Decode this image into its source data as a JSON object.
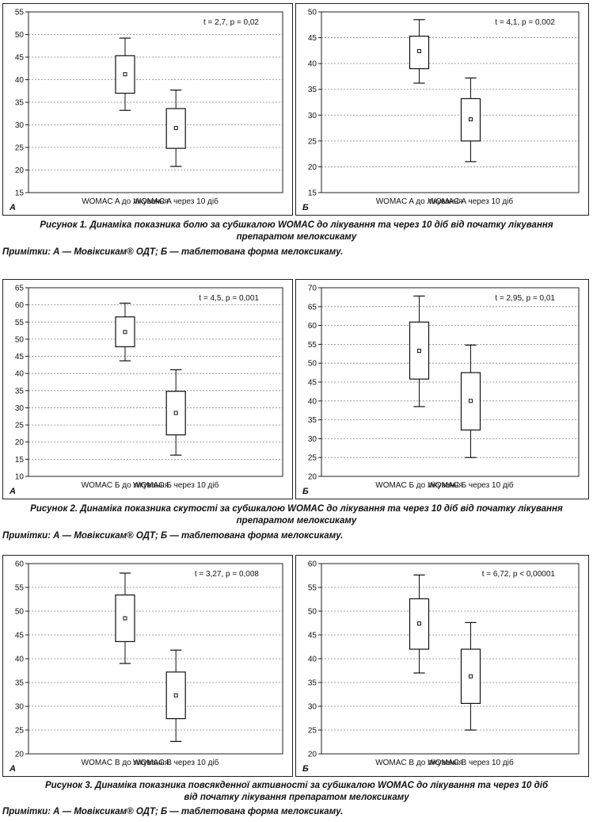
{
  "figures": [
    {
      "caption_line1": "Рисунок 1. Динаміка показника болю за субшкалою WOMAC до лікування та через 10 діб від початку лікування",
      "caption_line2": "препаратом мелоксикаму",
      "note": "Примітки: А — Мовіксикам® ОДТ; Б — таблетована форма мелоксикаму."
    },
    {
      "caption_line1": "Рисунок 2. Динаміка показника скутості за субшкалою WOMAC до лікування та через 10 діб від початку лікування",
      "caption_line2": "препаратом мелоксикаму",
      "note": "Примітки: А — Мовіксикам® ОДТ; Б — таблетована форма мелоксикаму."
    },
    {
      "caption_line1": "Рисунок 3. Динаміка показника повсякденної активності за субшкалою WOMAC до лікування та через 10 діб",
      "caption_line2": "від початку лікування препаратом мелоксикаму",
      "note": "Примітки: А — Мовіксикам® ОДТ; Б — таблетована форма мелоксикаму."
    }
  ],
  "chart_data": [
    {
      "type": "boxplot",
      "panel": "А",
      "stat": "t = 2,7, p = 0,02",
      "ylim": [
        15,
        55
      ],
      "yticks": [
        15,
        20,
        25,
        30,
        35,
        40,
        45,
        50,
        55
      ],
      "categories": [
        "WOMAC A до лікування",
        "WOMAC A через 10 діб"
      ],
      "boxes": [
        {
          "min": 33.2,
          "q1": 37.0,
          "mean": 41.2,
          "q3": 45.3,
          "max": 49.2
        },
        {
          "min": 20.8,
          "q1": 24.8,
          "mean": 29.3,
          "q3": 33.6,
          "max": 37.7
        }
      ]
    },
    {
      "type": "boxplot",
      "panel": "Б",
      "stat": "t = 4,1, p = 0,002",
      "ylim": [
        15,
        50
      ],
      "yticks": [
        15,
        20,
        25,
        30,
        35,
        40,
        45,
        50
      ],
      "categories": [
        "WOMAC A до лікування",
        "WOMAC A через 10 діб"
      ],
      "boxes": [
        {
          "min": 36.2,
          "q1": 39.0,
          "mean": 42.4,
          "q3": 45.3,
          "max": 48.5
        },
        {
          "min": 21.0,
          "q1": 25.0,
          "mean": 29.2,
          "q3": 33.2,
          "max": 37.2
        }
      ]
    },
    {
      "type": "boxplot",
      "panel": "А",
      "stat": "t = 4,5, p = 0,001",
      "ylim": [
        10,
        65
      ],
      "yticks": [
        10,
        15,
        20,
        25,
        30,
        35,
        40,
        45,
        50,
        55,
        60,
        65
      ],
      "categories": [
        "WOMAC Б до лікування",
        "WOMAC Б через 10 діб"
      ],
      "boxes": [
        {
          "min": 43.7,
          "q1": 47.8,
          "mean": 52.1,
          "q3": 56.5,
          "max": 60.5
        },
        {
          "min": 16.2,
          "q1": 22.1,
          "mean": 28.5,
          "q3": 34.8,
          "max": 41.1
        }
      ]
    },
    {
      "type": "boxplot",
      "panel": "Б",
      "stat": "t = 2,95, p = 0,01",
      "ylim": [
        20,
        70
      ],
      "yticks": [
        20,
        25,
        30,
        35,
        40,
        45,
        50,
        55,
        60,
        65,
        70
      ],
      "categories": [
        "WOMAC Б до лікування",
        "WOMAC Б через 10 діб"
      ],
      "boxes": [
        {
          "min": 38.5,
          "q1": 45.8,
          "mean": 53.3,
          "q3": 60.9,
          "max": 67.8
        },
        {
          "min": 25.0,
          "q1": 32.3,
          "mean": 40.0,
          "q3": 47.5,
          "max": 54.8
        }
      ]
    },
    {
      "type": "boxplot",
      "panel": "А",
      "stat": "t = 3,27, p = 0,008",
      "ylim": [
        20,
        60
      ],
      "yticks": [
        20,
        25,
        30,
        35,
        40,
        45,
        50,
        55,
        60
      ],
      "categories": [
        "WOMAC B до лікування",
        "WOMAC B через 10 діб"
      ],
      "boxes": [
        {
          "min": 39.0,
          "q1": 43.6,
          "mean": 48.5,
          "q3": 53.4,
          "max": 58.0
        },
        {
          "min": 22.6,
          "q1": 27.4,
          "mean": 32.3,
          "q3": 37.2,
          "max": 41.8
        }
      ]
    },
    {
      "type": "boxplot",
      "panel": "Б",
      "stat": "t = 6,72, p < 0,00001",
      "ylim": [
        20,
        60
      ],
      "yticks": [
        20,
        25,
        30,
        35,
        40,
        45,
        50,
        55,
        60
      ],
      "categories": [
        "WOMAC B до лікування",
        "WOMAC B через 10 діб"
      ],
      "boxes": [
        {
          "min": 37.0,
          "q1": 42.0,
          "mean": 47.4,
          "q3": 52.6,
          "max": 57.6
        },
        {
          "min": 25.0,
          "q1": 30.6,
          "mean": 36.3,
          "q3": 42.0,
          "max": 47.6
        }
      ]
    }
  ]
}
